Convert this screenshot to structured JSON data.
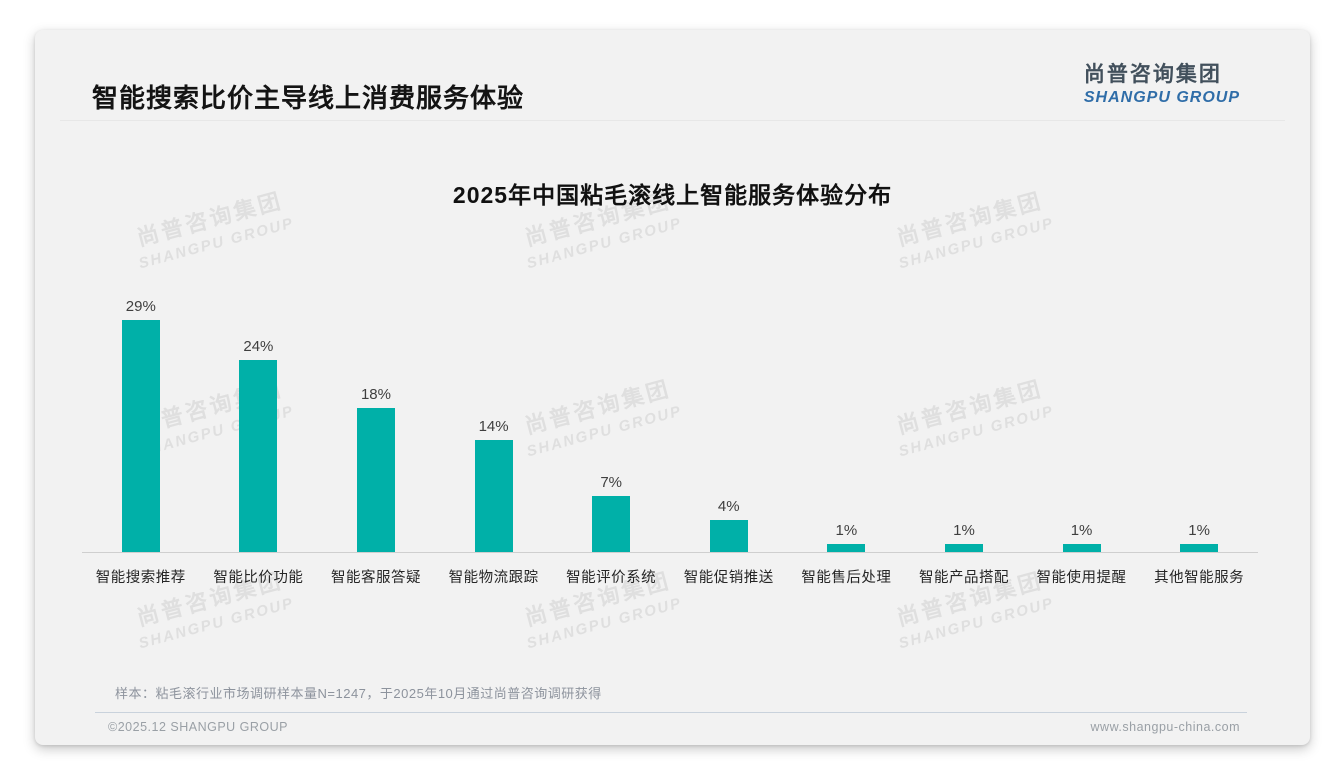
{
  "page": {
    "title": "智能搜索比价主导线上消费服务体验",
    "logo": {
      "cn": "尚普咨询集团",
      "en": "SHANGPU GROUP"
    },
    "watermark": {
      "cn": "尚普咨询集团",
      "en": "SHANGPU GROUP"
    },
    "note": "样本：粘毛滚行业市场调研样本量N=1247，于2025年10月通过尚普咨询调研获得",
    "footer": {
      "left": "©2025.12 SHANGPU GROUP",
      "right": "www.shangpu-china.com"
    }
  },
  "chart_data": {
    "type": "bar",
    "title": "2025年中国粘毛滚线上智能服务体验分布",
    "categories": [
      "智能搜索推荐",
      "智能比价功能",
      "智能客服答疑",
      "智能物流跟踪",
      "智能评价系统",
      "智能促销推送",
      "智能售后处理",
      "智能产品搭配",
      "智能使用提醒",
      "其他智能服务"
    ],
    "values": [
      29,
      24,
      18,
      14,
      7,
      4,
      1,
      1,
      1,
      1
    ],
    "value_labels": [
      "29%",
      "24%",
      "18%",
      "14%",
      "7%",
      "4%",
      "1%",
      "1%",
      "1%",
      "1%"
    ],
    "bar_color": "#00b0a8",
    "xlabel": "",
    "ylabel": "",
    "ylim": [
      0,
      32
    ],
    "grid": false,
    "legend": false,
    "axis_line_color": "#cfcfcf"
  }
}
